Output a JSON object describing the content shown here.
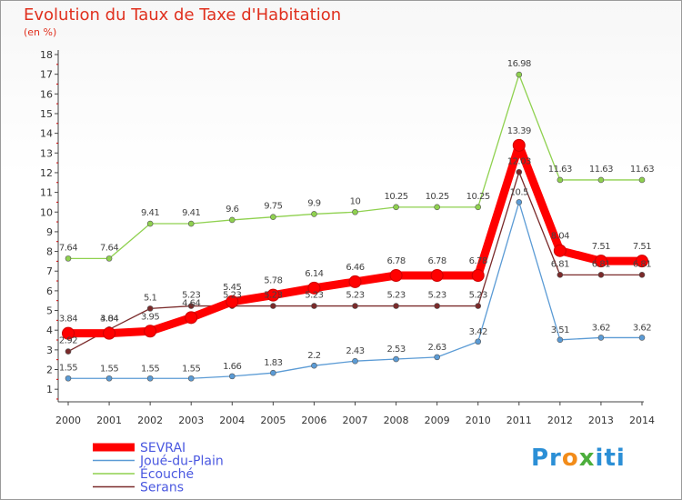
{
  "chart_data": {
    "type": "line",
    "title": "Evolution du Taux de Taxe d'Habitation",
    "subtitle": "(en %)",
    "x": [
      "2000",
      "2001",
      "2002",
      "2003",
      "2004",
      "2005",
      "2006",
      "2007",
      "2008",
      "2009",
      "2010",
      "2011",
      "2012",
      "2013",
      "2014"
    ],
    "ylim": [
      1,
      18
    ],
    "yticks": [
      1,
      2,
      3,
      4,
      5,
      6,
      7,
      8,
      9,
      10,
      11,
      12,
      13,
      14,
      15,
      16,
      17,
      18
    ],
    "grid": false,
    "legend_position": "bottom-left",
    "series": [
      {
        "name": "SEVRAI",
        "color": "#ff0000",
        "values": [
          3.84,
          3.84,
          3.95,
          4.64,
          5.45,
          5.78,
          6.14,
          6.46,
          6.78,
          6.78,
          6.78,
          13.39,
          8.04,
          7.51,
          7.51
        ],
        "labels": [
          "3.84",
          "3.84",
          "3.95",
          "4.64",
          "5.45",
          "5.78",
          "6.14",
          "6.46",
          "6.78",
          "6.78",
          "6.78",
          "13.39",
          "8.04",
          "7.51",
          "7.51"
        ]
      },
      {
        "name": "Joué-du-Plain",
        "color": "#5b9bd5",
        "values": [
          1.55,
          1.55,
          1.55,
          1.55,
          1.66,
          1.83,
          2.2,
          2.43,
          2.53,
          2.63,
          3.42,
          10.5,
          3.51,
          3.62,
          3.62
        ],
        "labels": [
          "1.55",
          "1.55",
          "1.55",
          "1.55",
          "1.66",
          "1.83",
          "2.2",
          "2.43",
          "2.53",
          "2.63",
          "3.42",
          "10.5",
          "3.51",
          "3.62",
          "3.62"
        ]
      },
      {
        "name": "Écouché",
        "color": "#8fd14f",
        "values": [
          7.64,
          7.64,
          9.41,
          9.41,
          9.6,
          9.75,
          9.9,
          10,
          10.25,
          10.25,
          10.25,
          16.98,
          11.63,
          11.63,
          11.63
        ],
        "labels": [
          "7.64",
          "7.64",
          "9.41",
          "9.41",
          "9.6",
          "9.75",
          "9.9",
          "10",
          "10.25",
          "10.25",
          "10.25",
          "16.98",
          "11.63",
          "11.63",
          "11.63"
        ]
      },
      {
        "name": "Serans",
        "color": "#7a2a2a",
        "values": [
          2.92,
          4.04,
          5.1,
          5.23,
          5.23,
          5.23,
          5.23,
          5.23,
          5.23,
          5.23,
          5.23,
          12.03,
          6.81,
          6.81,
          6.81
        ],
        "labels": [
          "2.92",
          "4.04",
          "5.1",
          "5.23",
          "5.23",
          "5.23",
          "5.23",
          "5.23",
          "5.23",
          "5.23",
          "5.23",
          "12.03",
          "6.81",
          "6.81",
          "6.81"
        ]
      }
    ]
  },
  "logo": {
    "p1": "Pr",
    "p2": "o",
    "p3": "x",
    "p4": "iti"
  }
}
